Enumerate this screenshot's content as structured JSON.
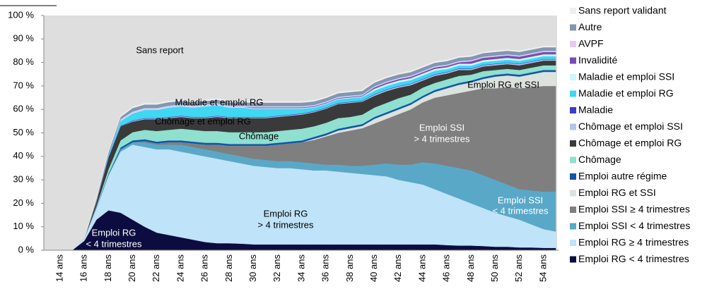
{
  "chart_data": {
    "type": "stacked_area",
    "categories": [
      "14 ans",
      null,
      "16 ans",
      null,
      "18 ans",
      null,
      "20 ans",
      null,
      "22 ans",
      null,
      "24 ans",
      null,
      "26 ans",
      null,
      "28 ans",
      null,
      "30 ans",
      null,
      "32 ans",
      null,
      "34 ans",
      null,
      "36 ans",
      null,
      "38 ans",
      null,
      "40 ans",
      null,
      "42 ans",
      null,
      "44 ans",
      null,
      "46 ans",
      null,
      "48 ans",
      null,
      "50 ans",
      null,
      "52 ans",
      null,
      "54 ans",
      null
    ],
    "ylim": [
      0,
      100
    ],
    "yticks": [
      {
        "value": 0,
        "label": "0 %"
      },
      {
        "value": 10,
        "label": "10 %"
      },
      {
        "value": 20,
        "label": "20 %"
      },
      {
        "value": 30,
        "label": "30 %"
      },
      {
        "value": 40,
        "label": "40 %"
      },
      {
        "value": 50,
        "label": "50 %"
      },
      {
        "value": 60,
        "label": "60 %"
      },
      {
        "value": 70,
        "label": "70 %"
      },
      {
        "value": 80,
        "label": "80 %"
      },
      {
        "value": 90,
        "label": "90 %"
      },
      {
        "value": 100,
        "label": "100 %"
      }
    ],
    "legend": "right",
    "annotations": [
      [
        "Sans report"
      ],
      [
        "Maladie et emploi RG"
      ],
      [
        "Chômage et emploi RG"
      ],
      [
        "Chômage"
      ],
      [
        "Emploi SSI",
        "> 4 trimestres"
      ],
      [
        "Emploi RG et SSI"
      ],
      [
        "Emploi RG",
        "> 4 trimestres"
      ],
      [
        "Emploi SSI",
        "< 4 trimestres"
      ],
      [
        "Emploi RG",
        "< 4 trimestres"
      ]
    ],
    "series": [
      {
        "name": "Emploi RG < 4 trimestres",
        "color": "#0c0c40",
        "values": [
          0,
          0,
          4,
          13,
          17,
          16,
          13,
          10,
          7.5,
          6.5,
          5.5,
          4.5,
          3.5,
          3,
          3,
          2.8,
          2.5,
          2.5,
          2.5,
          2.5,
          2.5,
          2.5,
          2.5,
          2.5,
          2.5,
          2.5,
          2.5,
          2.5,
          2.5,
          2.5,
          2.5,
          2.5,
          2.2,
          2,
          2,
          1.8,
          1.5,
          1.5,
          1.2,
          1.2,
          1,
          1
        ]
      },
      {
        "name": "Emploi RG ≥ 4 trimestres",
        "color": "#bfe3f8",
        "values": [
          0,
          0,
          1,
          5,
          15,
          26,
          32,
          34,
          35.5,
          36.5,
          36.5,
          36.5,
          36.5,
          36,
          35,
          34.2,
          33.5,
          33,
          32.5,
          32.5,
          32,
          31.5,
          31.5,
          31,
          30.5,
          30,
          29.5,
          29,
          27.5,
          26.5,
          25.5,
          23.5,
          21.8,
          20,
          18,
          16.2,
          14.5,
          13,
          11.8,
          9.8,
          8,
          7
        ]
      },
      {
        "name": "Emploi SSI < 4 trimestres",
        "color": "#5aa8c8",
        "values": [
          0,
          0,
          0,
          0,
          0,
          1,
          1,
          2,
          2,
          2,
          3,
          3,
          3,
          3,
          3,
          3,
          3,
          3,
          3,
          3,
          3,
          3,
          2.5,
          3,
          3,
          3.5,
          4.5,
          5.5,
          6.5,
          7.5,
          9.5,
          11,
          12,
          13,
          14,
          14,
          14,
          13.5,
          13,
          14.5,
          16,
          17
        ]
      },
      {
        "name": "Emploi SSI ≥ 4 trimestres",
        "color": "#7f7f7f",
        "values": [
          0,
          0,
          0,
          0,
          0,
          0,
          0,
          0.5,
          0.5,
          1,
          1,
          1.5,
          2,
          3,
          3.5,
          4.5,
          5.5,
          6,
          7,
          7.5,
          8.5,
          10,
          12,
          13.5,
          15,
          16,
          17.5,
          19,
          21.5,
          23.5,
          25.5,
          28,
          30,
          32,
          34,
          37,
          39,
          41.5,
          43,
          44,
          45,
          45
        ]
      },
      {
        "name": "Emploi RG et SSI",
        "color": "#dce2dc",
        "values": [
          0,
          0,
          0,
          0,
          0,
          0,
          0,
          0,
          0,
          0,
          0,
          0,
          0,
          0,
          0,
          0,
          0,
          0,
          0,
          0,
          0,
          0.5,
          0.5,
          1,
          1,
          1,
          2,
          2,
          2,
          2,
          2,
          2.5,
          3,
          3.5,
          3.5,
          4,
          5,
          5,
          5,
          5.5,
          6,
          6
        ]
      },
      {
        "name": "Emploi autre régime",
        "color": "#1156a8",
        "values": [
          0,
          0,
          0,
          0.3,
          0.5,
          0.8,
          0.8,
          0.8,
          0.8,
          0.8,
          0.8,
          0.8,
          0.8,
          0.8,
          0.8,
          0.8,
          0.8,
          0.8,
          0.8,
          0.8,
          0.8,
          0.8,
          0.8,
          0.8,
          0.8,
          0.8,
          0.8,
          0.8,
          0.8,
          0.8,
          0.8,
          0.8,
          0.8,
          0.8,
          0.8,
          0.8,
          0.8,
          0.8,
          0.8,
          0.8,
          0.8,
          0.8
        ]
      },
      {
        "name": "Chômage",
        "color": "#8fe0cf",
        "values": [
          0,
          0,
          0,
          0.5,
          2,
          3,
          3.5,
          4,
          4.5,
          4.5,
          5,
          5,
          5,
          5,
          5,
          5,
          5,
          5,
          5,
          5,
          5,
          4.5,
          4.5,
          4.5,
          4,
          4,
          4,
          4,
          4,
          3.5,
          3.5,
          3,
          3,
          3,
          2.5,
          2.5,
          2,
          2,
          2,
          2,
          2,
          2
        ]
      },
      {
        "name": "Chômage et emploi RG",
        "color": "#3a3a3a",
        "values": [
          0,
          0,
          0,
          2,
          5,
          6,
          4.5,
          4.5,
          5,
          5,
          5,
          5,
          5.5,
          6,
          6,
          6,
          6,
          6,
          6,
          6,
          6,
          6,
          6,
          6,
          6,
          5.5,
          5,
          5,
          4.5,
          4,
          3,
          3,
          2.5,
          2.5,
          2,
          2,
          2,
          2,
          2,
          2,
          2,
          2
        ]
      },
      {
        "name": "Chômage et emploi SSI",
        "color": "#b4c6e7",
        "values": [
          0,
          0,
          0,
          0,
          0,
          0,
          0.3,
          0.3,
          0.3,
          0.3,
          0.3,
          0.3,
          0.3,
          0.3,
          0.3,
          0.3,
          0.3,
          0.3,
          0.3,
          0.3,
          0.3,
          0.3,
          0.3,
          0.3,
          0.3,
          0.3,
          0.5,
          0.5,
          0.5,
          0.5,
          0.5,
          0.5,
          0.5,
          0.5,
          0.5,
          0.5,
          0.5,
          0.5,
          0.5,
          0.5,
          0.5,
          0.5
        ]
      },
      {
        "name": "Maladie",
        "color": "#3b3bc8",
        "values": [
          0,
          0,
          0,
          0,
          0.2,
          0.2,
          0.2,
          0.2,
          0.2,
          0.2,
          0.2,
          0.2,
          0.2,
          0.2,
          0.2,
          0.2,
          0.2,
          0.2,
          0.2,
          0.2,
          0.2,
          0.2,
          0.2,
          0.2,
          0.2,
          0.2,
          0.2,
          0.2,
          0.2,
          0.2,
          0.2,
          0.2,
          0.2,
          0.2,
          0.2,
          0.2,
          0.2,
          0.2,
          0.2,
          0.2,
          0.2,
          0.2
        ]
      },
      {
        "name": "Maladie et emploi RG",
        "color": "#3fd7f2",
        "values": [
          0,
          0,
          0,
          0,
          1,
          2,
          3,
          3.5,
          3.5,
          4,
          4,
          4,
          4.5,
          4.5,
          4,
          4,
          3.5,
          3.5,
          3,
          2.5,
          2,
          1.5,
          1.5,
          1.5,
          1.5,
          1.5,
          1.5,
          1.5,
          1.5,
          1.5,
          1.5,
          1.5,
          1.2,
          1.2,
          1.2,
          1.2,
          1.2,
          1.2,
          1.2,
          1.2,
          1.2,
          1.2
        ]
      },
      {
        "name": "Maladie et emploi SSI",
        "color": "#ccf7ff",
        "values": [
          0,
          0,
          0,
          0,
          0,
          0.3,
          0.3,
          0.3,
          0.3,
          0.3,
          0.3,
          0.3,
          0.3,
          0.3,
          0.3,
          0.3,
          0.3,
          0.3,
          0.3,
          0.3,
          0.3,
          0.3,
          0.3,
          0.3,
          0.3,
          0.3,
          0.8,
          0.8,
          0.8,
          0.8,
          0.8,
          0.8,
          0.8,
          0.8,
          0.8,
          0.8,
          0.8,
          0.8,
          0.8,
          0.8,
          0.8,
          0.8
        ]
      },
      {
        "name": "Invalidité",
        "color": "#7a4cb0",
        "values": [
          0,
          0,
          0,
          0,
          0,
          0,
          0,
          0,
          0,
          0,
          0,
          0,
          0,
          0,
          0,
          0,
          0.3,
          0.3,
          0.3,
          0.3,
          0.3,
          0.3,
          0.3,
          0.3,
          0.3,
          0.3,
          0.6,
          0.6,
          0.6,
          0.6,
          0.6,
          0.6,
          0.6,
          0.6,
          1,
          1,
          1,
          1,
          1,
          1,
          1,
          1
        ]
      },
      {
        "name": "AVPF",
        "color": "#e2cbf6",
        "values": [
          0,
          0,
          0,
          0,
          0,
          0.5,
          0.5,
          0.5,
          0.5,
          0.5,
          0.5,
          0.5,
          0.5,
          0.5,
          0.5,
          0.5,
          0.5,
          0.5,
          0.5,
          0.5,
          0.5,
          0.5,
          0.5,
          0.5,
          0.5,
          0.5,
          0.5,
          0.5,
          0.5,
          0.5,
          0.5,
          0.5,
          0.5,
          0.5,
          0.5,
          0.5,
          0.5,
          0.5,
          0.5,
          0.5,
          0.5,
          0.5
        ]
      },
      {
        "name": "Autre",
        "color": "#8097b0",
        "values": [
          0,
          0,
          0,
          1,
          1,
          1,
          1.5,
          1.5,
          1.5,
          1.5,
          1.5,
          1.5,
          1.5,
          1.5,
          1.5,
          1.5,
          1.5,
          1.5,
          1.5,
          1.5,
          1.5,
          1.5,
          1.5,
          1.5,
          1.5,
          1.5,
          1.5,
          1.5,
          1.5,
          1.5,
          1.5,
          1.5,
          1.5,
          1.5,
          1.5,
          1.5,
          1.5,
          1.5,
          1.5,
          1.5,
          1.5,
          1.5
        ]
      },
      {
        "name": "Sans report validant",
        "color": "#efefef",
        "values": [
          0,
          0,
          0,
          0.5,
          0.5,
          0.5,
          0.5,
          0.5,
          0.5,
          0.5,
          0.5,
          0.5,
          0.5,
          0.5,
          0.5,
          0.5,
          0.5,
          0.5,
          0.5,
          0.5,
          0.5,
          0.5,
          0.5,
          0.5,
          0.5,
          0.5,
          0.5,
          0.5,
          0.5,
          0.5,
          0.5,
          0.5,
          0.5,
          0.5,
          0.5,
          0.5,
          0.5,
          0.5,
          0.5,
          0.5,
          0.5,
          0.5
        ]
      }
    ]
  }
}
